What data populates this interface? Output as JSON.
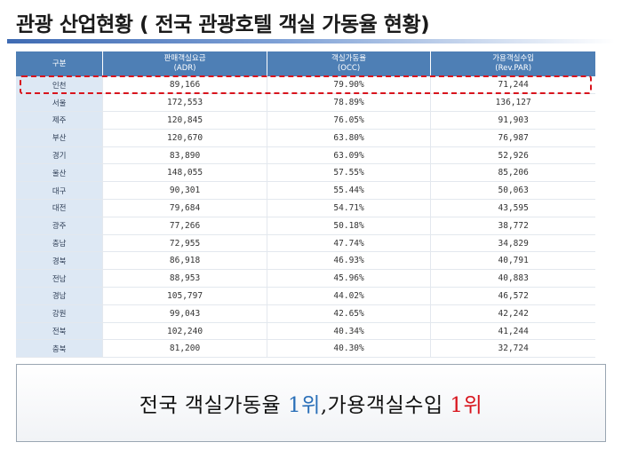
{
  "header": {
    "title": "관광 산업현황 ( 전국 관광호텔 객실 가동율 현황)"
  },
  "table": {
    "columns": [
      {
        "line1": "구분",
        "line2": ""
      },
      {
        "line1": "판매객실요금",
        "line2": "(ADR)"
      },
      {
        "line1": "객실가동율",
        "line2": "(OCC)"
      },
      {
        "line1": "가용객실수입",
        "line2": "(Rev.PAR)"
      }
    ],
    "rows": [
      {
        "region": "인천",
        "adr": "89,166",
        "occ": "79.90%",
        "revpar": "71,244"
      },
      {
        "region": "서울",
        "adr": "172,553",
        "occ": "78.89%",
        "revpar": "136,127"
      },
      {
        "region": "제주",
        "adr": "120,845",
        "occ": "76.05%",
        "revpar": "91,903"
      },
      {
        "region": "부산",
        "adr": "120,670",
        "occ": "63.80%",
        "revpar": "76,987"
      },
      {
        "region": "경기",
        "adr": "83,890",
        "occ": "63.09%",
        "revpar": "52,926"
      },
      {
        "region": "울산",
        "adr": "148,055",
        "occ": "57.55%",
        "revpar": "85,206"
      },
      {
        "region": "대구",
        "adr": "90,301",
        "occ": "55.44%",
        "revpar": "50,063"
      },
      {
        "region": "대전",
        "adr": "79,684",
        "occ": "54.71%",
        "revpar": "43,595"
      },
      {
        "region": "광주",
        "adr": "77,266",
        "occ": "50.18%",
        "revpar": "38,772"
      },
      {
        "region": "충남",
        "adr": "72,955",
        "occ": "47.74%",
        "revpar": "34,829"
      },
      {
        "region": "경북",
        "adr": "86,918",
        "occ": "46.93%",
        "revpar": "40,791"
      },
      {
        "region": "전남",
        "adr": "88,953",
        "occ": "45.96%",
        "revpar": "40,883"
      },
      {
        "region": "경남",
        "adr": "105,797",
        "occ": "44.02%",
        "revpar": "46,572"
      },
      {
        "region": "강원",
        "adr": "99,043",
        "occ": "42.65%",
        "revpar": "42,242"
      },
      {
        "region": "전북",
        "adr": "102,240",
        "occ": "40.34%",
        "revpar": "41,244"
      },
      {
        "region": "충북",
        "adr": "81,200",
        "occ": "40.30%",
        "revpar": "32,724"
      }
    ]
  },
  "summary": {
    "part1": "전국 객실가동율 ",
    "rank1": "1위",
    "part2": ",가용객실수입 ",
    "rank2": "1위",
    "colors": {
      "rank1": "#2a6fb8",
      "rank2": "#d8141d"
    }
  },
  "colors": {
    "header_bg": "#4e7fb5",
    "region_bg": "#dde8f4",
    "highlight": "#d8141d"
  }
}
